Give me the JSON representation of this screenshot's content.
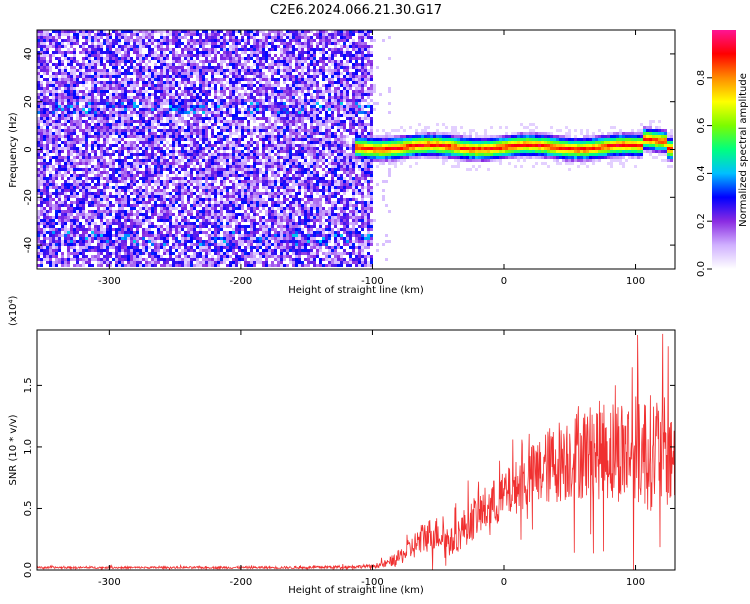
{
  "title": "C2E6.2024.066.21.30.G17",
  "chart_data": [
    {
      "type": "heatmap",
      "name": "spectrogram",
      "xlabel": "Height of straight line (km)",
      "ylabel": "Frequency (Hz)",
      "xlim": [
        -355,
        130
      ],
      "ylim": [
        -50,
        50
      ],
      "x_ticks": [
        -300,
        -200,
        -100,
        0,
        100
      ],
      "x_tick_labels": [
        "-300",
        "-200",
        "-100",
        "0",
        "100"
      ],
      "y_ticks": [
        -40,
        -20,
        0,
        20,
        40
      ],
      "y_tick_labels": [
        "-40",
        "-20",
        "0",
        "20",
        "40"
      ],
      "noise_region_x": [
        -355,
        -100
      ],
      "signal_region_x": [
        -113,
        130
      ],
      "signal_frequency_hz": 1,
      "colorbar": {
        "label": "Normalized spectral amplitude",
        "range": [
          0.0,
          1.0
        ],
        "ticks": [
          0.0,
          0.2,
          0.4,
          0.6,
          0.8
        ],
        "tick_labels": [
          "0.0",
          "0.2",
          "0.4",
          "0.6",
          "0.8"
        ],
        "colors": [
          "#ffffff",
          "#d0b0ff",
          "#8a2be2",
          "#0000ff",
          "#00bfff",
          "#00ff7f",
          "#7cfc00",
          "#ffff00",
          "#ff8c00",
          "#ff0000",
          "#ff1493"
        ]
      }
    },
    {
      "type": "line",
      "name": "snr",
      "xlabel": "Height of straight line (km)",
      "ylabel": "SNR (10 * v/v)",
      "y_multiplier": "(x10⁴)",
      "xlim": [
        -355,
        130
      ],
      "ylim": [
        0,
        1.95
      ],
      "x_ticks": [
        -300,
        -200,
        -100,
        0,
        100
      ],
      "x_tick_labels": [
        "-300",
        "-200",
        "-100",
        "0",
        "100"
      ],
      "y_ticks": [
        0,
        0.5,
        1.0,
        1.5
      ],
      "y_tick_labels": [
        "0.0",
        "0.5",
        "1.0",
        "1.5"
      ],
      "color": "#f03030",
      "envelope": {
        "x": [
          -355,
          -250,
          -150,
          -100,
          -90,
          -80,
          -70,
          -60,
          -50,
          -40,
          -30,
          -20,
          -10,
          0,
          10,
          20,
          30,
          40,
          50,
          60,
          70,
          80,
          90,
          100,
          110,
          120,
          130
        ],
        "y": [
          0.02,
          0.02,
          0.02,
          0.03,
          0.05,
          0.1,
          0.18,
          0.28,
          0.3,
          0.22,
          0.35,
          0.45,
          0.52,
          0.6,
          0.68,
          0.75,
          0.82,
          0.88,
          0.92,
          0.95,
          0.97,
          0.98,
          0.98,
          0.97,
          0.96,
          0.95,
          0.95
        ],
        "noise": [
          0.008,
          0.008,
          0.01,
          0.015,
          0.03,
          0.06,
          0.1,
          0.14,
          0.14,
          0.12,
          0.16,
          0.18,
          0.2,
          0.2,
          0.22,
          0.26,
          0.3,
          0.34,
          0.36,
          0.38,
          0.4,
          0.42,
          0.44,
          0.46,
          0.48,
          0.46,
          0.44
        ]
      }
    }
  ]
}
